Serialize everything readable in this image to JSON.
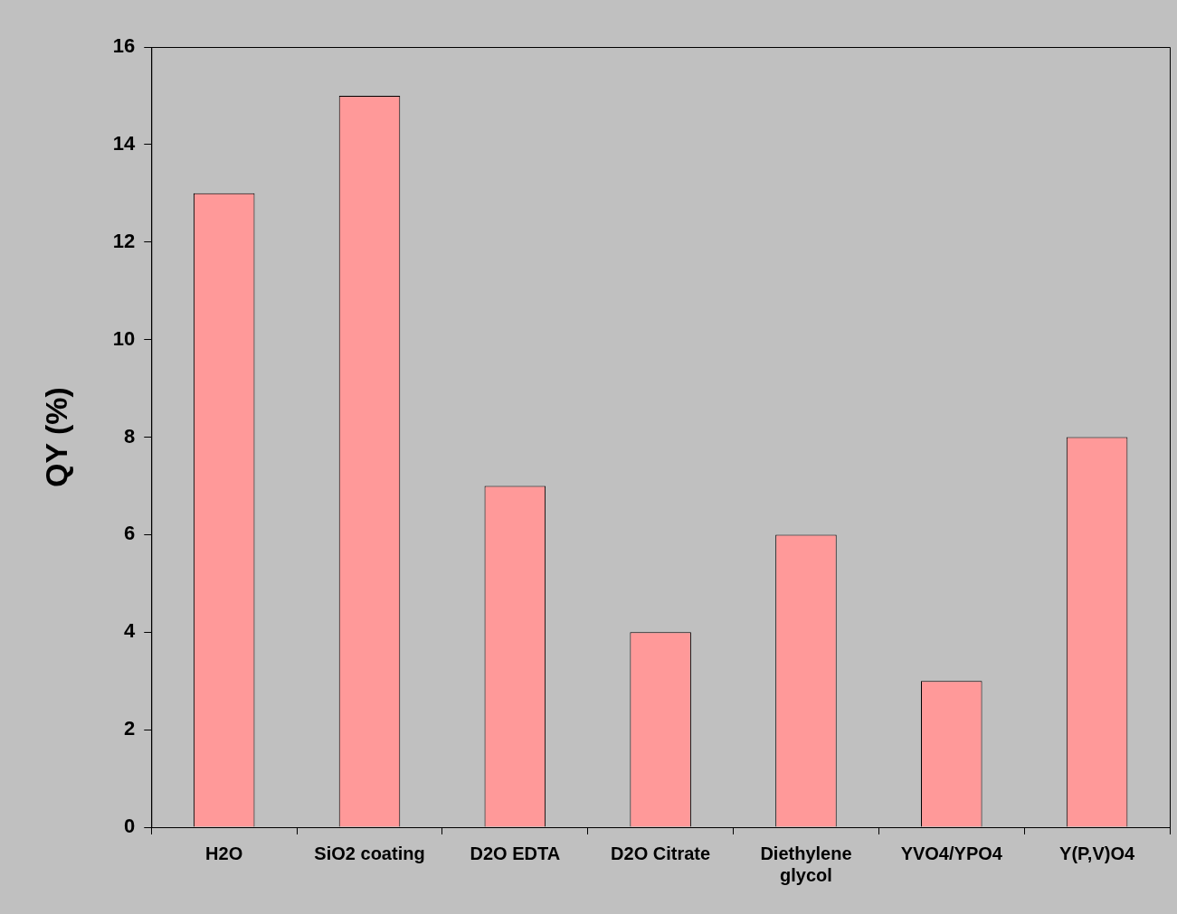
{
  "chart_data": {
    "type": "bar",
    "ylabel": "QY (%)",
    "categories": [
      "H2O",
      "SiO2 coating",
      "D2O EDTA",
      "D2O Citrate",
      "Diethylene glycol",
      "YVO4/YPO4",
      "Y(P,V)O4"
    ],
    "values": [
      13,
      15,
      7,
      4,
      6,
      3,
      8
    ],
    "color": "#ff9999",
    "ylim": [
      0,
      16
    ],
    "yticks": [
      0,
      2,
      4,
      6,
      8,
      10,
      12,
      14,
      16
    ]
  }
}
